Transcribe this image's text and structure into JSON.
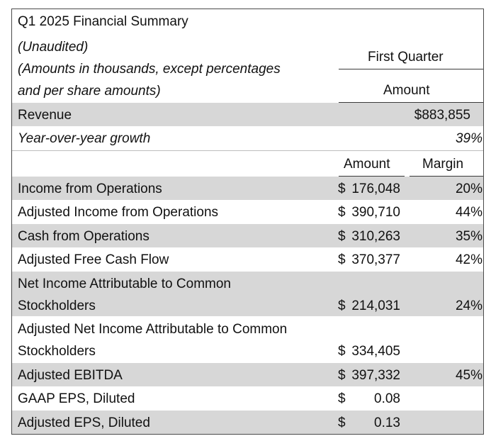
{
  "header": {
    "title": "Q1 2025 Financial Summary",
    "unaudited": "(Unaudited)",
    "note_line1": "(Amounts in thousands, except percentages",
    "note_line2": "and per share amounts)",
    "period_label": "First Quarter",
    "amount_label": "Amount"
  },
  "revenue": {
    "label": "Revenue",
    "value": "$883,855",
    "growth_label": "Year-over-year growth",
    "growth_value": "39%"
  },
  "columns": {
    "amount": "Amount",
    "margin": "Margin"
  },
  "rows": [
    {
      "label": "Income from Operations",
      "cur": "$",
      "amount": "176,048",
      "margin": "20%"
    },
    {
      "label": "Adjusted Income from Operations",
      "cur": "$",
      "amount": "390,710",
      "margin": "44%"
    },
    {
      "label": "Cash from Operations",
      "cur": "$",
      "amount": "310,263",
      "margin": "35%"
    },
    {
      "label": "Adjusted Free Cash Flow",
      "cur": "$",
      "amount": "370,377",
      "margin": "42%"
    },
    {
      "label_line1": "Net Income Attributable to Common",
      "label_line2": "Stockholders",
      "cur": "$",
      "amount": "214,031",
      "margin": "24%"
    },
    {
      "label_line1": "Adjusted Net Income Attributable to Common",
      "label_line2": "Stockholders",
      "cur": "$",
      "amount": "334,405",
      "margin": ""
    },
    {
      "label": "Adjusted EBITDA",
      "cur": "$",
      "amount": "397,332",
      "margin": "45%"
    },
    {
      "label": "GAAP EPS, Diluted",
      "cur": "$",
      "amount": "0.08",
      "margin": ""
    },
    {
      "label": "Adjusted EPS, Diluted",
      "cur": "$",
      "amount": "0.13",
      "margin": ""
    }
  ]
}
